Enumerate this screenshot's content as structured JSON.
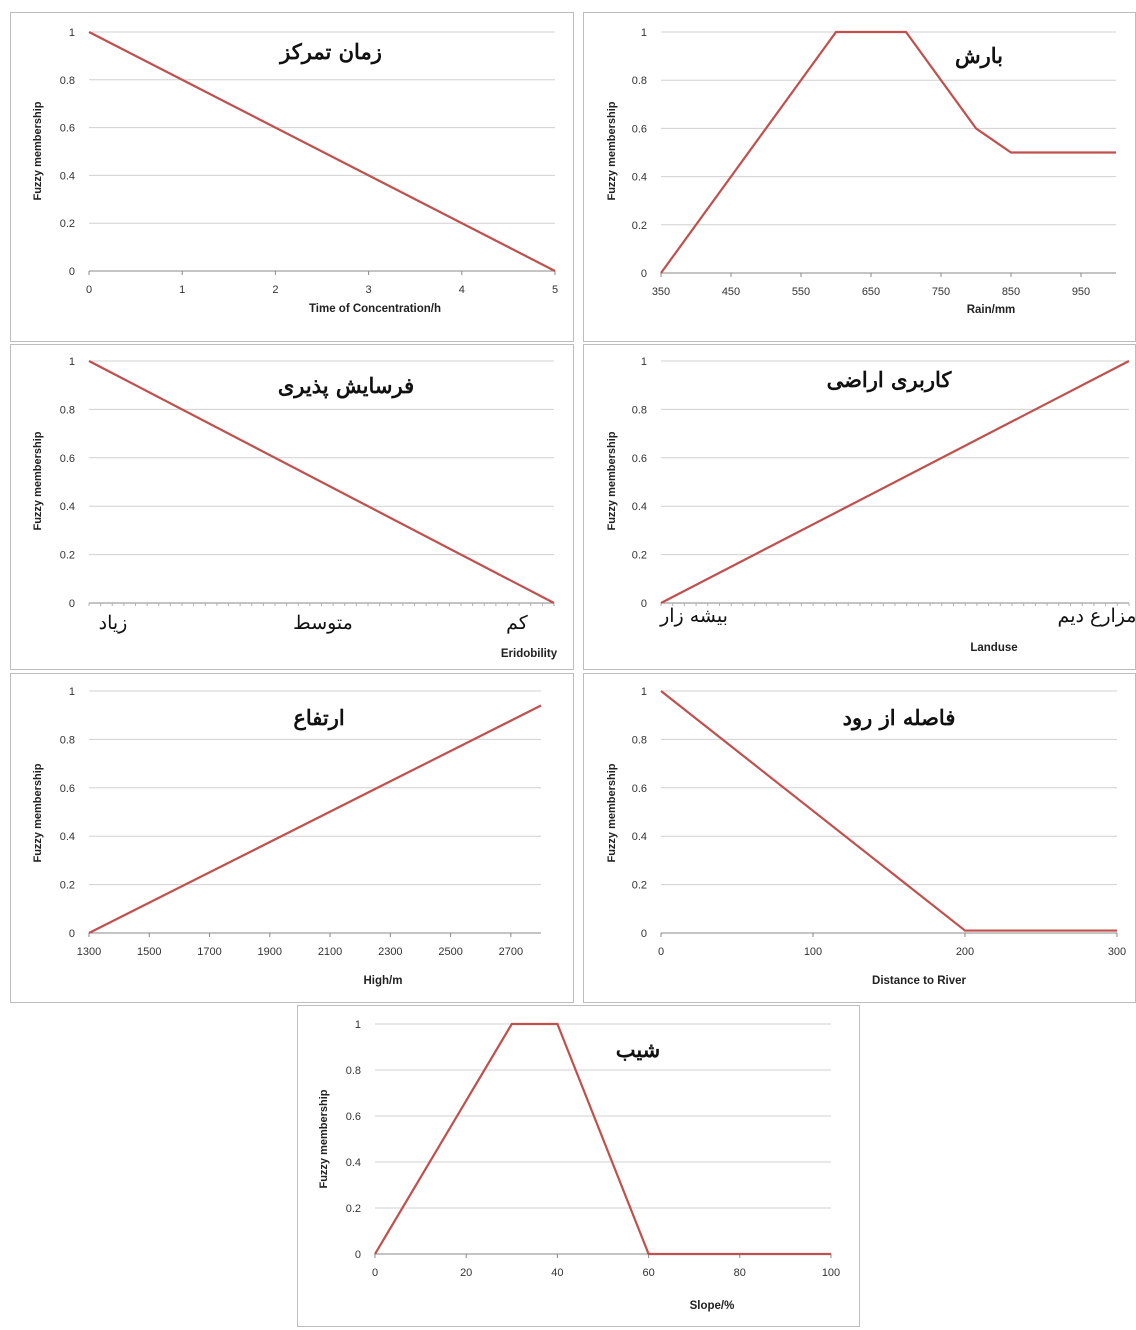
{
  "chart_data": [
    {
      "id": "toc",
      "type": "line",
      "title": "زمان تمرکز",
      "xlabel": "Time of Concentration/h",
      "ylabel": "Fuzzy membership",
      "xlim": [
        0,
        5
      ],
      "ylim": [
        0,
        1
      ],
      "xticks": [
        0,
        1,
        2,
        3,
        4,
        5
      ],
      "yticks": [
        0,
        0.2,
        0.4,
        0.6,
        0.8,
        1
      ],
      "grid": "horizontal",
      "series": [
        {
          "x": [
            0,
            5
          ],
          "y": [
            1,
            0
          ]
        }
      ]
    },
    {
      "id": "rain",
      "type": "line",
      "title": "بارش",
      "xlabel": "Rain/mm",
      "ylabel": "Fuzzy membership",
      "xlim": [
        350,
        1000
      ],
      "ylim": [
        0,
        1
      ],
      "xticks": [
        350,
        450,
        550,
        650,
        750,
        850,
        950
      ],
      "yticks": [
        0,
        0.2,
        0.4,
        0.6,
        0.8,
        1
      ],
      "grid": "horizontal",
      "series": [
        {
          "x": [
            350,
            600,
            700,
            800,
            850,
            1000
          ],
          "y": [
            0,
            1,
            1,
            0.6,
            0.5,
            0.5
          ]
        }
      ]
    },
    {
      "id": "erodibility",
      "type": "line",
      "title": "فرسایش پذیری",
      "xlabel": "Eridobility",
      "ylabel": "Fuzzy membership",
      "xlim": [
        0,
        2
      ],
      "ylim": [
        0,
        1
      ],
      "xtick_positions": [
        0,
        1,
        2
      ],
      "categories": [
        "زیاد",
        "متوسط",
        "کم"
      ],
      "yticks": [
        0,
        0.2,
        0.4,
        0.6,
        0.8,
        1
      ],
      "grid": "horizontal",
      "series": [
        {
          "x": [
            0,
            2
          ],
          "y": [
            1,
            0
          ]
        }
      ]
    },
    {
      "id": "landuse",
      "type": "line",
      "title": "کاربری اراضی",
      "xlabel": "Landuse",
      "ylabel": "Fuzzy membership",
      "xlim": [
        0,
        1
      ],
      "ylim": [
        0,
        1
      ],
      "xtick_positions": [
        0,
        1
      ],
      "categories": [
        "بیشه زار",
        "مزارع دیم"
      ],
      "yticks": [
        0,
        0.2,
        0.4,
        0.6,
        0.8,
        1
      ],
      "grid": "horizontal",
      "series": [
        {
          "x": [
            0,
            1
          ],
          "y": [
            0,
            1
          ]
        }
      ]
    },
    {
      "id": "elevation",
      "type": "line",
      "title": "ارتفاع",
      "xlabel": "High/m",
      "ylabel": "Fuzzy membership",
      "xlim": [
        1300,
        2800
      ],
      "ylim": [
        0,
        1
      ],
      "xticks": [
        1300,
        1500,
        1700,
        1900,
        2100,
        2300,
        2500,
        2700
      ],
      "yticks": [
        0,
        0.2,
        0.4,
        0.6,
        0.8,
        1
      ],
      "grid": "horizontal",
      "series": [
        {
          "x": [
            1300,
            2800
          ],
          "y": [
            0,
            0.94
          ]
        }
      ]
    },
    {
      "id": "river",
      "type": "line",
      "title": "فاصله از رود",
      "xlabel": "Distance to River",
      "ylabel": "Fuzzy membership",
      "xlim": [
        0,
        300
      ],
      "ylim": [
        0,
        1
      ],
      "xticks": [
        0,
        100,
        200,
        300
      ],
      "yticks": [
        0,
        0.2,
        0.4,
        0.6,
        0.8,
        1
      ],
      "grid": "horizontal",
      "series": [
        {
          "x": [
            0,
            200,
            300
          ],
          "y": [
            1,
            0.01,
            0.01
          ]
        }
      ]
    },
    {
      "id": "slope",
      "type": "line",
      "title": "شیب",
      "xlabel": "Slope/%",
      "ylabel": "Fuzzy membership",
      "xlim": [
        0,
        100
      ],
      "ylim": [
        0,
        1
      ],
      "xticks": [
        0,
        20,
        40,
        60,
        80,
        100
      ],
      "yticks": [
        0,
        0.2,
        0.4,
        0.6,
        0.8,
        1
      ],
      "grid": "horizontal",
      "series": [
        {
          "x": [
            0,
            30,
            40,
            60,
            100
          ],
          "y": [
            0,
            1,
            1,
            0,
            0
          ]
        }
      ]
    }
  ],
  "style": {
    "line_color": "#c0504d",
    "grid_color": "#d0d0d0",
    "axis_color": "#888888",
    "border_color": "#bdbdbd"
  }
}
